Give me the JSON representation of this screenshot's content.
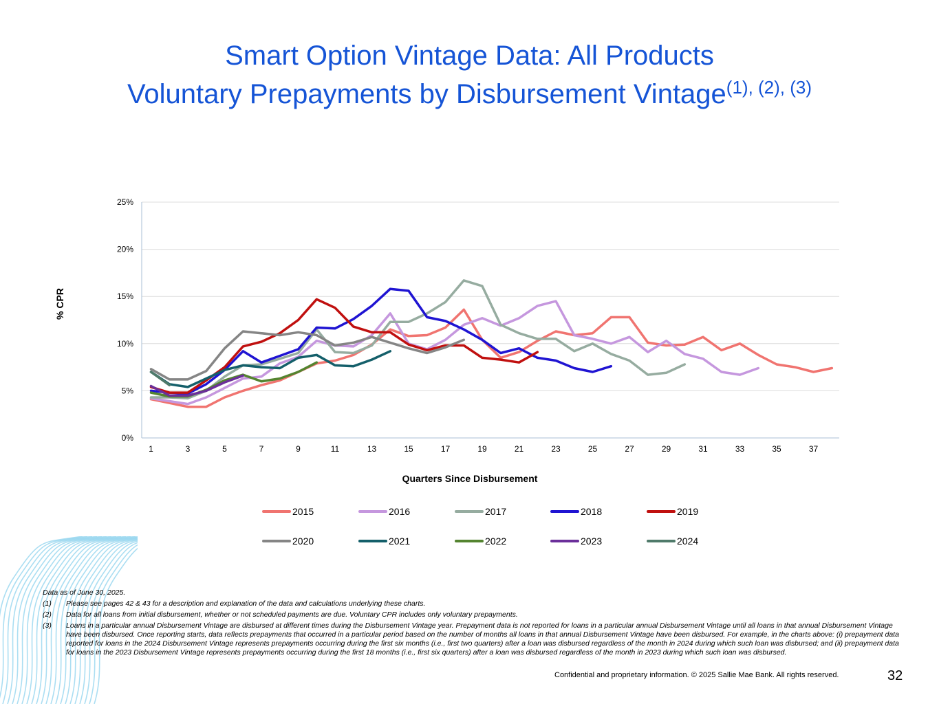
{
  "title": {
    "line1": "Smart Option Vintage Data: All Products",
    "line2": "Voluntary Prepayments by Disbursement Vintage",
    "superscript": "(1), (2), (3)"
  },
  "chart_data": {
    "type": "line",
    "title": "Smart Option Vintage Data: All Products Voluntary Prepayments by Disbursement Vintage",
    "xlabel": "Quarters Since Disbursement",
    "ylabel": "% CPR",
    "xlim": [
      1,
      38
    ],
    "ylim": [
      0,
      25
    ],
    "x_ticks": [
      "1",
      "3",
      "5",
      "7",
      "9",
      "11",
      "13",
      "15",
      "17",
      "19",
      "21",
      "23",
      "25",
      "27",
      "29",
      "31",
      "33",
      "35",
      "37"
    ],
    "y_ticks": [
      "0%",
      "5%",
      "10%",
      "15%",
      "20%",
      "25%"
    ],
    "y_tick_values": [
      0,
      5,
      10,
      15,
      20,
      25
    ],
    "grid": true,
    "legend_position": "bottom",
    "series": [
      {
        "name": "2015",
        "color": "#f07470",
        "values": [
          4.1,
          3.7,
          3.3,
          3.3,
          4.3,
          5.0,
          5.6,
          6.1,
          7.0,
          7.9,
          8.2,
          8.8,
          9.9,
          11.5,
          10.8,
          10.9,
          11.7,
          13.6,
          10.4,
          8.5,
          9.1,
          10.3,
          11.3,
          10.9,
          11.1,
          12.8,
          12.8,
          10.1,
          9.8,
          9.9,
          10.7,
          9.3,
          10.0,
          8.8,
          7.8,
          7.5,
          7.0,
          7.4
        ]
      },
      {
        "name": "2016",
        "color": "#c597de",
        "values": [
          4.2,
          3.9,
          3.6,
          4.3,
          5.3,
          6.3,
          6.5,
          7.9,
          8.6,
          10.3,
          9.8,
          9.7,
          10.9,
          13.2,
          10.0,
          9.4,
          10.4,
          12.0,
          12.7,
          11.9,
          12.7,
          14.0,
          14.5,
          10.9,
          10.5,
          10.0,
          10.7,
          9.1,
          10.3,
          8.9,
          8.4,
          7.0,
          6.7,
          7.4
        ]
      },
      {
        "name": "2017",
        "color": "#96aca0",
        "values": [
          4.3,
          4.3,
          4.2,
          5.0,
          6.5,
          7.7,
          7.8,
          8.4,
          9.0,
          11.5,
          9.1,
          9.0,
          9.8,
          12.3,
          12.3,
          13.2,
          14.4,
          16.7,
          16.1,
          12.0,
          11.1,
          10.5,
          10.5,
          9.2,
          10.0,
          8.9,
          8.2,
          6.7,
          6.9,
          7.8
        ]
      },
      {
        "name": "2018",
        "color": "#1f14d2",
        "values": [
          5.0,
          4.8,
          4.7,
          5.7,
          7.2,
          9.2,
          8.0,
          8.7,
          9.4,
          11.7,
          11.6,
          12.6,
          14.0,
          15.8,
          15.6,
          12.8,
          12.4,
          11.5,
          10.4,
          9.0,
          9.5,
          8.5,
          8.2,
          7.4,
          7.0,
          7.6
        ]
      },
      {
        "name": "2019",
        "color": "#c0100f",
        "values": [
          5.4,
          4.8,
          4.8,
          6.1,
          7.5,
          9.7,
          10.2,
          11.1,
          12.5,
          14.7,
          13.8,
          11.8,
          11.2,
          11.2,
          9.9,
          9.3,
          9.8,
          9.8,
          8.5,
          8.3,
          8.0,
          9.1
        ]
      },
      {
        "name": "2020",
        "color": "#858585",
        "values": [
          7.3,
          6.2,
          6.2,
          7.1,
          9.5,
          11.3,
          11.1,
          10.9,
          11.2,
          10.9,
          9.8,
          10.1,
          10.7,
          10.1,
          9.5,
          9.0,
          9.6,
          10.4
        ]
      },
      {
        "name": "2021",
        "color": "#145f6a",
        "values": [
          7.0,
          5.7,
          5.4,
          6.3,
          7.2,
          7.7,
          7.5,
          7.4,
          8.5,
          8.8,
          7.7,
          7.6,
          8.3,
          9.2
        ]
      },
      {
        "name": "2022",
        "color": "#548430",
        "values": [
          4.8,
          4.4,
          4.4,
          5.1,
          6.1,
          6.7,
          6.0,
          6.3,
          7.0,
          8.0
        ]
      },
      {
        "name": "2023",
        "color": "#6b2f9a",
        "values": [
          5.5,
          4.5,
          4.5,
          5.0,
          5.9,
          6.6
        ]
      },
      {
        "name": "2024",
        "color": "#4f7a6a",
        "values": [
          7.0,
          5.6
        ]
      }
    ]
  },
  "footnotes": {
    "data_as_of": "Data as of  June 30, 2025.",
    "items": [
      {
        "num": "(1)",
        "text": "Please see pages 42 & 43 for a description and explanation of the data and calculations underlying these charts."
      },
      {
        "num": "(2)",
        "text": "Data for all loans from initial disbursement, whether or not scheduled payments are due. Voluntary CPR includes only voluntary prepayments."
      },
      {
        "num": "(3)",
        "text": "Loans in a particular annual Disbursement Vintage are disbursed at different times during the Disbursement Vintage year.  Prepayment data is not reported for loans in a particular annual Disbursement Vintage until all loans in that annual Disbursement Vintage have been disbursed.  Once reporting starts, data reflects prepayments that occurred in a particular period based on the number of months all loans in that annual Disbursement Vintage have been disbursed.  For example, in the charts above:  (i) prepayment data reported for loans in the 2024 Disbursement Vintage represents prepayments occurring during the first six months (i.e., first two quarters) after a loan was disbursed regardless of the month in 2024 during which such loan was disbursed; and (ii) prepayment data for loans in the 2023 Disbursement Vintage represents prepayments occurring during the first 18 months (i.e., first six quarters) after a loan was disbursed regardless of the month in 2023 during which such loan was disbursed."
      }
    ]
  },
  "footer": {
    "confidential": "Confidential and proprietary information. © 2025 Sallie Mae Bank. All rights reserved.",
    "page_number": "32"
  }
}
